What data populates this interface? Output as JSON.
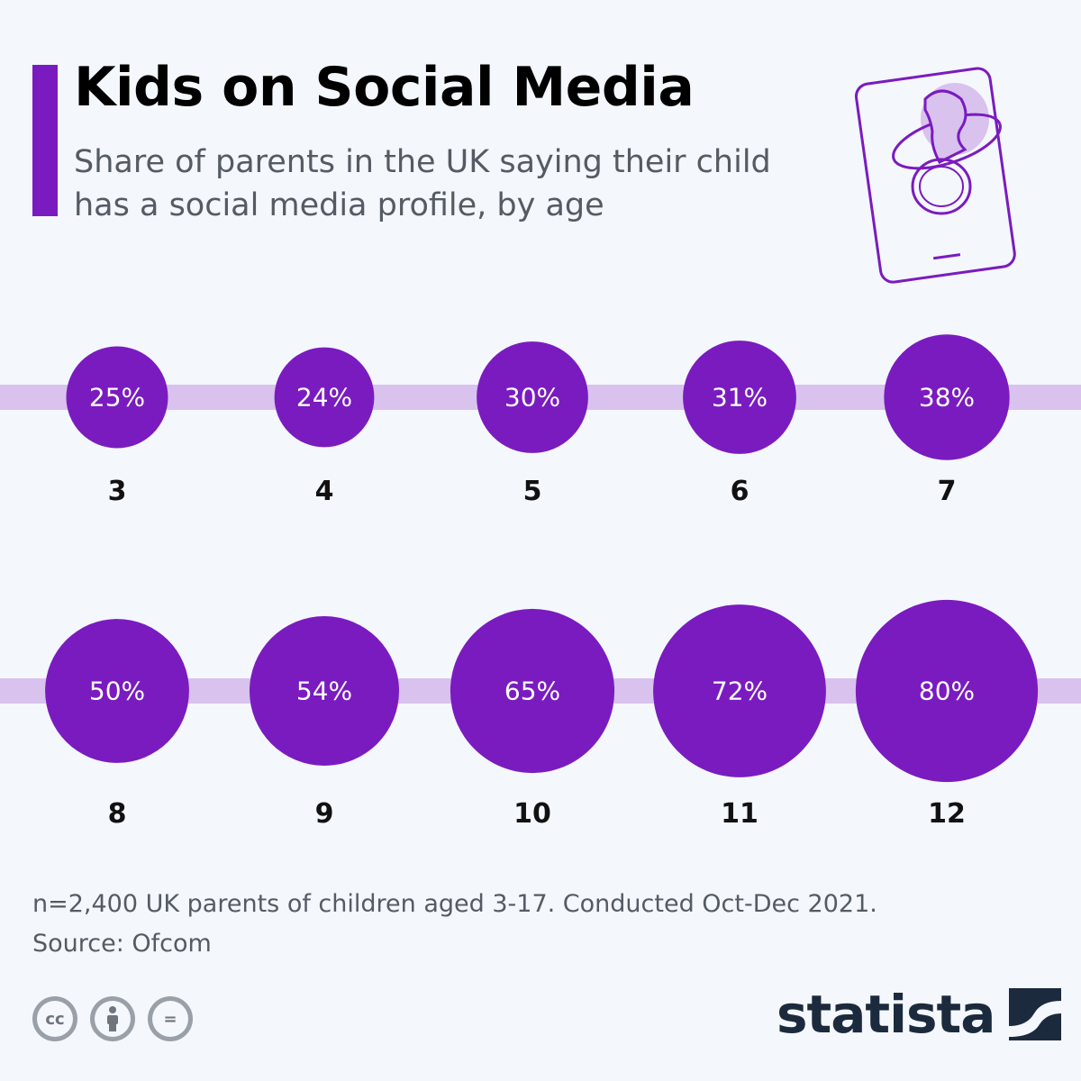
{
  "header": {
    "title": "Kids on Social Media",
    "subtitle": "Share of parents in the UK saying their child has a social media profile, by age"
  },
  "chart_data": {
    "type": "bubble",
    "categories": [
      "3",
      "4",
      "5",
      "6",
      "7",
      "8",
      "9",
      "10",
      "11",
      "12"
    ],
    "values": [
      25,
      24,
      30,
      31,
      38,
      50,
      54,
      65,
      72,
      80
    ],
    "value_labels": [
      "25%",
      "24%",
      "30%",
      "31%",
      "38%",
      "50%",
      "54%",
      "65%",
      "72%",
      "80%"
    ],
    "unit": "%",
    "rows": 2,
    "per_row": 5
  },
  "colors": {
    "accent": "#7a1bbf",
    "bubble": "#7a1bbf",
    "band": "#d9c2ee",
    "background": "#f4f7fc"
  },
  "footer": {
    "note": "n=2,400 UK parents of children aged 3-17. Conducted Oct-Dec 2021.",
    "source": "Source: Ofcom",
    "license_icons": [
      "cc-icon",
      "attribution-icon",
      "no-derivatives-icon"
    ],
    "license_icon_text": {
      "cc": "cc",
      "nd": "="
    },
    "brand": "statista"
  }
}
